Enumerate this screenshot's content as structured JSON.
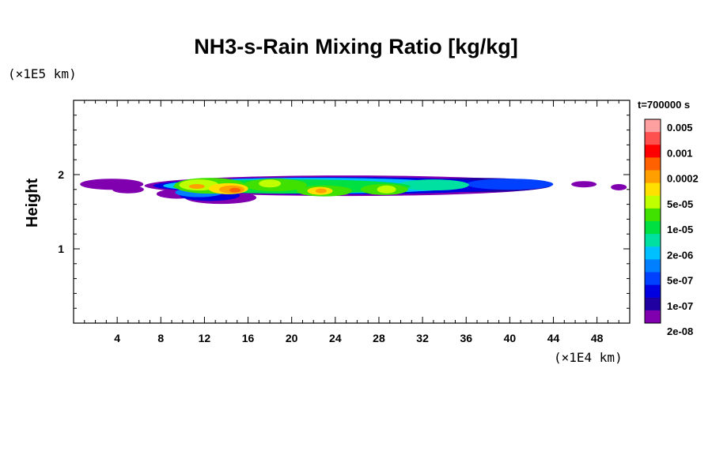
{
  "chart_data": {
    "type": "heatmap",
    "title": "NH3-s-Rain Mixing Ratio [kg/kg]",
    "xlabel": "",
    "x_exponent_label": "(×1E4 km)",
    "ylabel": "Height",
    "y_exponent_label": "(×1E5 km)",
    "xlim": [
      0,
      51
    ],
    "ylim": [
      0,
      3
    ],
    "x_ticks": [
      4,
      8,
      12,
      16,
      20,
      24,
      28,
      32,
      36,
      40,
      44,
      48
    ],
    "y_ticks": [
      1,
      2
    ],
    "time_label": "t=700000 s",
    "colorbar": {
      "labels": [
        "0.005",
        "0.001",
        "0.0002",
        "5e-05",
        "1e-05",
        "2e-06",
        "5e-07",
        "1e-07",
        "2e-08"
      ],
      "colors": [
        "#ffa0a0",
        "#ff5050",
        "#ff0000",
        "#ff6000",
        "#ffa000",
        "#ffe000",
        "#c0ff00",
        "#40e000",
        "#00e040",
        "#00e0a0",
        "#00c0ff",
        "#0080ff",
        "#0040ff",
        "#0000e0",
        "#2000a0",
        "#8000b0"
      ]
    },
    "field": {
      "description": "thin cloud band between heights ~1.6 and ~2.05 (x1E5 km)",
      "x_extent": [
        0,
        51
      ],
      "y_extent": [
        1.6,
        2.05
      ],
      "peak_locations": [
        {
          "x": 14.5,
          "y": 1.8,
          "level": "0.0002"
        },
        {
          "x": 11.5,
          "y": 1.85,
          "level": "5e-05"
        },
        {
          "x": 22.5,
          "y": 1.78,
          "level": "5e-05"
        },
        {
          "x": 28.5,
          "y": 1.8,
          "level": "1e-05"
        },
        {
          "x": 18.5,
          "y": 1.85,
          "level": "1e-05"
        }
      ]
    }
  }
}
